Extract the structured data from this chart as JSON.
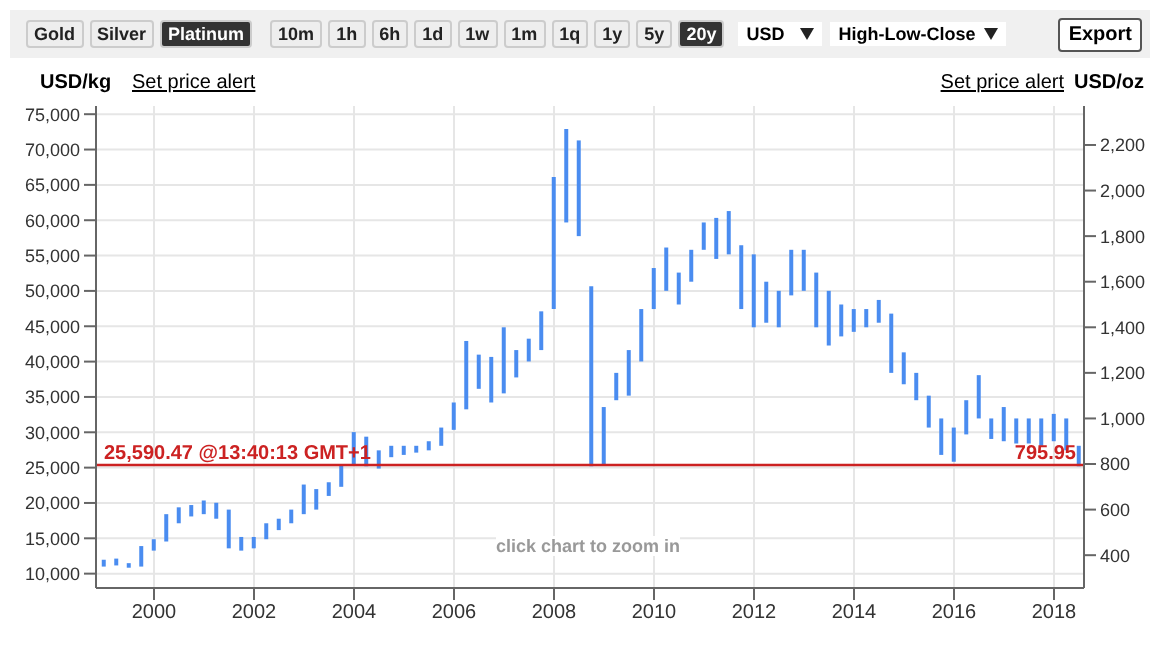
{
  "chart_data": {
    "type": "bar",
    "ylabel": "USD/kg",
    "y2label": "USD/oz",
    "x": [
      1999.0,
      1999.25,
      1999.5,
      1999.75,
      2000.0,
      2000.25,
      2000.5,
      2000.75,
      2001.0,
      2001.25,
      2001.5,
      2001.75,
      2002.0,
      2002.25,
      2002.5,
      2002.75,
      2003.0,
      2003.25,
      2003.5,
      2003.75,
      2004.0,
      2004.25,
      2004.5,
      2004.75,
      2005.0,
      2005.25,
      2005.5,
      2005.75,
      2006.0,
      2006.25,
      2006.5,
      2006.75,
      2007.0,
      2007.25,
      2007.5,
      2007.75,
      2008.0,
      2008.25,
      2008.5,
      2008.75,
      2009.0,
      2009.25,
      2009.5,
      2009.75,
      2010.0,
      2010.25,
      2010.5,
      2010.75,
      2011.0,
      2011.25,
      2011.5,
      2011.75,
      2012.0,
      2012.25,
      2012.5,
      2012.75,
      2013.0,
      2013.25,
      2013.5,
      2013.75,
      2014.0,
      2014.25,
      2014.5,
      2014.75,
      2015.0,
      2015.25,
      2015.5,
      2015.75,
      2016.0,
      2016.25,
      2016.5,
      2016.75,
      2017.0,
      2017.25,
      2017.5,
      2017.75,
      2018.0,
      2018.25,
      2018.5
    ],
    "series": [
      {
        "color": "#4a8cf0",
        "axis": "y2",
        "base": [
          350,
          355,
          345,
          350,
          420,
          460,
          540,
          570,
          580,
          560,
          430,
          420,
          430,
          470,
          510,
          540,
          580,
          600,
          660,
          700,
          800,
          790,
          780,
          830,
          840,
          850,
          860,
          880,
          950,
          1040,
          1130,
          1070,
          1110,
          1180,
          1250,
          1300,
          1480,
          1860,
          1800,
          790,
          800,
          1080,
          1100,
          1250,
          1480,
          1560,
          1500,
          1600,
          1740,
          1700,
          1720,
          1480,
          1400,
          1420,
          1400,
          1540,
          1560,
          1400,
          1320,
          1360,
          1380,
          1400,
          1420,
          1200,
          1150,
          1080,
          960,
          840,
          810,
          930,
          1000,
          910,
          900,
          890,
          890,
          880,
          900,
          860,
          790
        ],
        "values": [
          30,
          30,
          20,
          90,
          50,
          120,
          70,
          50,
          60,
          70,
          170,
          60,
          50,
          70,
          50,
          60,
          130,
          90,
          60,
          100,
          140,
          130,
          80,
          50,
          40,
          30,
          40,
          80,
          120,
          300,
          150,
          200,
          290,
          120,
          100,
          170,
          580,
          410,
          420,
          790,
          250,
          120,
          200,
          230,
          180,
          190,
          140,
          140,
          120,
          180,
          190,
          280,
          320,
          180,
          160,
          200,
          180,
          240,
          240,
          140,
          100,
          80,
          100,
          260,
          140,
          120,
          140,
          160,
          150,
          150,
          190,
          90,
          150,
          110,
          110,
          120,
          120,
          140,
          90
        ]
      }
    ],
    "xlim": [
      1998.84,
      2018.6
    ],
    "xticks": [
      2000,
      2002,
      2004,
      2006,
      2008,
      2010,
      2012,
      2014,
      2016,
      2018
    ],
    "ylim": [
      7970,
      76160
    ],
    "yticks": [
      {
        "value": 10000,
        "label": "10,000"
      },
      {
        "value": 15000,
        "label": "15,000"
      },
      {
        "value": 20000,
        "label": "20,000"
      },
      {
        "value": 25000,
        "label": "25,000"
      },
      {
        "value": 30000,
        "label": "30,000"
      },
      {
        "value": 35000,
        "label": "35,000"
      },
      {
        "value": 40000,
        "label": "40,000"
      },
      {
        "value": 45000,
        "label": "45,000"
      },
      {
        "value": 50000,
        "label": "50,000"
      },
      {
        "value": 55000,
        "label": "55,000"
      },
      {
        "value": 60000,
        "label": "60,000"
      },
      {
        "value": 65000,
        "label": "65,000"
      },
      {
        "value": 70000,
        "label": "70,000"
      },
      {
        "value": 75000,
        "label": "75,000"
      }
    ],
    "y2lim": [
      256,
      2371
    ],
    "y2ticks": [
      400,
      600,
      800,
      {
        "value": 1000,
        "label": "1,000"
      },
      {
        "value": 1200,
        "label": "1,200"
      },
      {
        "value": 1400,
        "label": "1,400"
      },
      {
        "value": 1600,
        "label": "1,600"
      },
      {
        "value": 1800,
        "label": "1,800"
      },
      {
        "value": 2000,
        "label": "2,000"
      },
      {
        "value": 2200,
        "label": "2,200"
      }
    ],
    "ref_lines": [
      {
        "axis": "y2",
        "value": 795.95,
        "label": "795.95",
        "color": "#cc2222"
      }
    ],
    "grid": true,
    "annotations": [
      "Gold",
      "Silver",
      "Platinum",
      "10m",
      "1h",
      "6h",
      "1d",
      "1w",
      "1m",
      "1q",
      "1y",
      "5y",
      "20y",
      "USD",
      "High-Low-Close",
      "Export",
      "Set price alert",
      "Set price alert",
      "click chart to zoom in",
      "25,590.47 @13:40:13 GMT+1"
    ]
  }
}
